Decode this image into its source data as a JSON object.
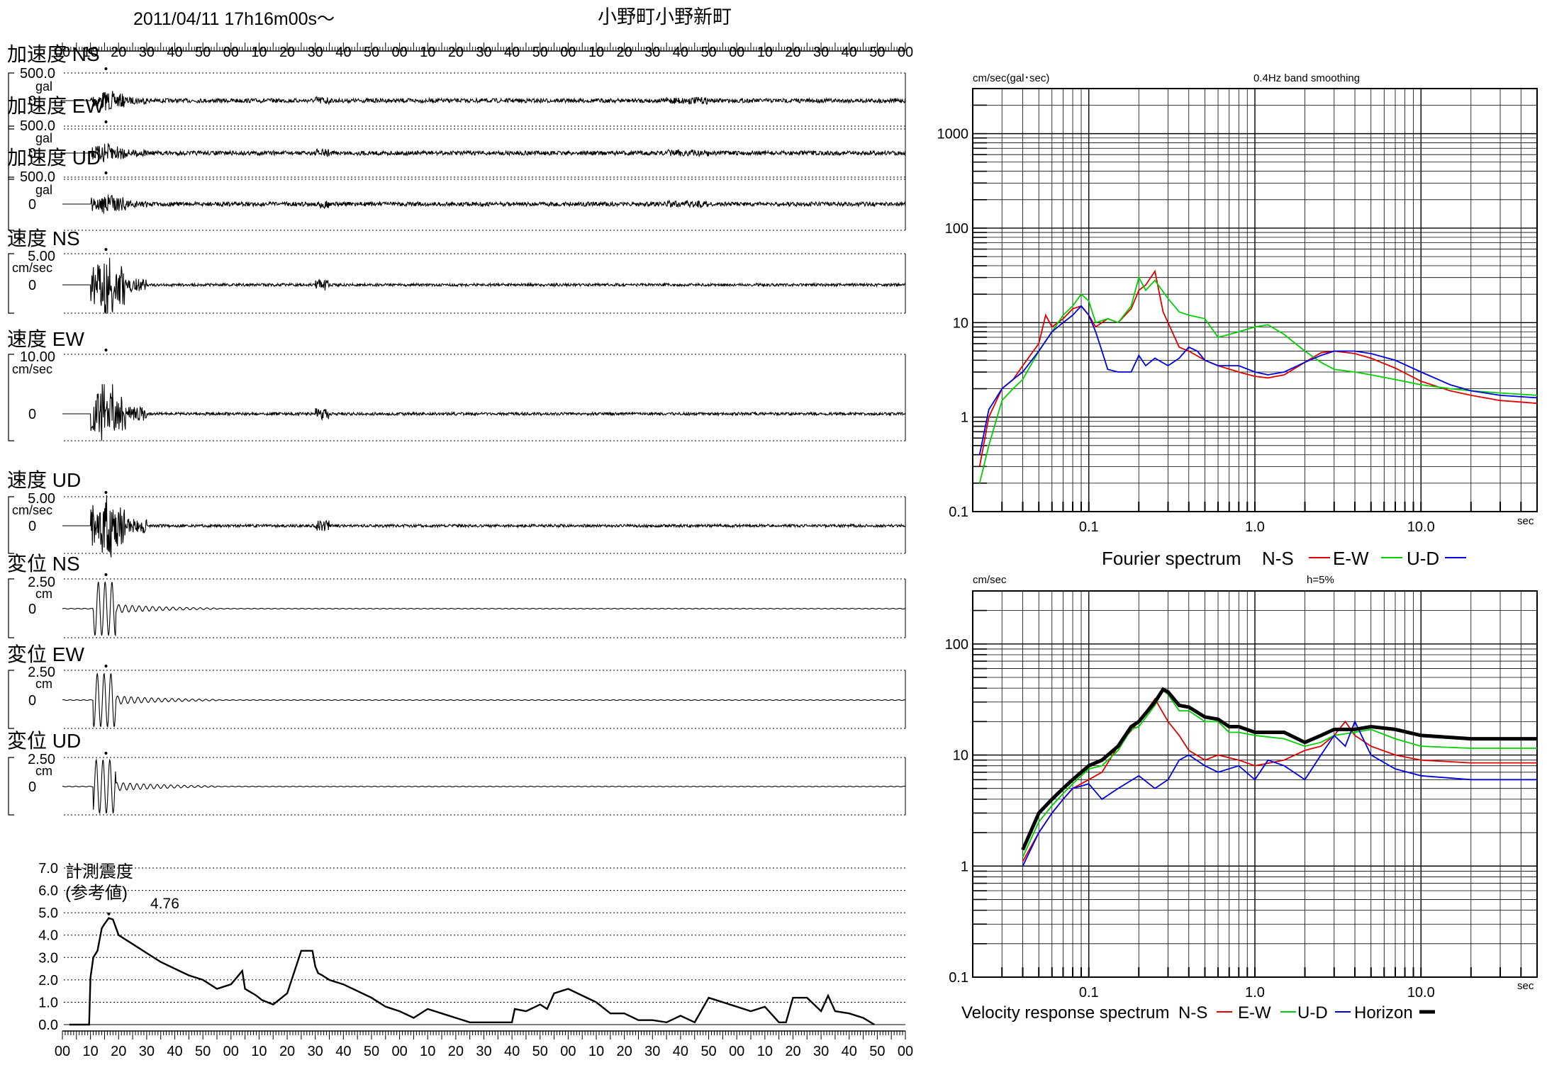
{
  "header": {
    "datetime": "2011/04/11  17h16m00s〜",
    "station": "小野町小野新町"
  },
  "time_axis_ticks": [
    "00",
    "10",
    "20",
    "30",
    "40",
    "50",
    "00",
    "10",
    "20",
    "30",
    "40",
    "50",
    "00",
    "10",
    "20",
    "30",
    "40",
    "50",
    "00",
    "10",
    "20",
    "30",
    "40",
    "50",
    "00",
    "10",
    "20",
    "30",
    "40",
    "50",
    "00"
  ],
  "waveforms": [
    {
      "label": "加速度 NS",
      "scale": "500.0",
      "unit": "gal",
      "zero": "0"
    },
    {
      "label": "加速度 EW",
      "scale": "500.0",
      "unit": "gal",
      "zero": "0"
    },
    {
      "label": "加速度 UD",
      "scale": "500.0",
      "unit": "gal",
      "zero": "0"
    },
    {
      "label": "速度 NS",
      "scale": "5.00",
      "unit": "cm/sec",
      "zero": "0"
    },
    {
      "label": "速度 EW",
      "scale": "10.00",
      "unit": "cm/sec",
      "zero": "0"
    },
    {
      "label": "速度 UD",
      "scale": "5.00",
      "unit": "cm/sec",
      "zero": "0"
    },
    {
      "label": "変位 NS",
      "scale": "2.50",
      "unit": "cm",
      "zero": "0"
    },
    {
      "label": "変位 EW",
      "scale": "2.50",
      "unit": "cm",
      "zero": "0"
    },
    {
      "label": "変位 UD",
      "scale": "2.50",
      "unit": "cm",
      "zero": "0"
    }
  ],
  "intensity": {
    "title_line1": "計測震度",
    "title_line2": "(参考値)",
    "peak_label": "4.76"
  },
  "fourier_panel": {
    "unit_label": "cm/sec(gal･sec)",
    "note": "0.4Hz band smoothing",
    "legend_title": "Fourier spectrum",
    "legend": [
      "N-S",
      "E-W",
      "U-D"
    ]
  },
  "response_panel": {
    "unit_label": "cm/sec",
    "note": "h=5%",
    "legend_title": "Velocity response spectrum",
    "legend": [
      "N-S",
      "E-W",
      "U-D",
      "Horizon"
    ]
  },
  "colors": {
    "ns": "#e00000",
    "ew": "#00d000",
    "ud": "#0000e0",
    "horizon": "#000000"
  },
  "chart_data": [
    {
      "type": "line",
      "name": "intensity",
      "x_ticks": [
        "00",
        "10",
        "20",
        "30",
        "40",
        "50",
        "00",
        "10",
        "20",
        "30",
        "40",
        "50",
        "00",
        "10",
        "20",
        "30",
        "40",
        "50",
        "00",
        "10",
        "20",
        "30",
        "40",
        "50",
        "00",
        "10",
        "20",
        "30",
        "40",
        "50",
        "00"
      ],
      "y_ticks": [
        "0.0",
        "1.0",
        "2.0",
        "3.0",
        "4.0",
        "5.0",
        "6.0",
        "7.0"
      ],
      "ylim": [
        0,
        7
      ],
      "x": [
        5,
        19,
        20,
        22,
        25,
        28,
        30,
        33,
        36,
        40,
        50,
        60,
        70,
        80,
        90,
        100,
        110,
        120,
        128,
        130,
        138,
        142,
        150,
        160,
        170,
        178,
        180,
        182,
        185,
        190,
        200,
        210,
        220,
        230,
        240,
        250,
        260,
        270,
        280,
        290,
        300,
        310,
        320,
        322,
        330,
        340,
        345,
        350,
        360,
        370,
        380,
        390,
        400,
        410,
        420,
        430,
        440,
        450,
        460,
        470,
        480,
        490,
        500,
        510,
        515,
        520,
        530,
        540,
        545,
        550,
        560,
        570,
        578
      ],
      "y": [
        0,
        0,
        2.1,
        3.0,
        3.3,
        4.3,
        4.5,
        4.76,
        4.7,
        4.0,
        3.6,
        3.2,
        2.8,
        2.5,
        2.2,
        2.0,
        1.6,
        1.8,
        2.4,
        1.6,
        1.3,
        1.1,
        0.9,
        1.4,
        3.3,
        3.3,
        2.6,
        2.3,
        2.2,
        2.0,
        1.8,
        1.5,
        1.2,
        0.8,
        0.6,
        0.3,
        0.7,
        0.5,
        0.3,
        0.1,
        0.1,
        0.1,
        0.1,
        0.7,
        0.6,
        0.9,
        0.7,
        1.4,
        1.6,
        1.3,
        1.0,
        0.5,
        0.5,
        0.2,
        0.2,
        0.1,
        0.4,
        0.1,
        1.2,
        1.0,
        0.8,
        0.6,
        0.8,
        0.1,
        0.1,
        1.2,
        1.2,
        0.6,
        1.3,
        0.6,
        0.5,
        0.3,
        0.0
      ]
    },
    {
      "type": "line",
      "name": "fourier",
      "xscale": "log",
      "yscale": "log",
      "xlim": [
        0.02,
        50
      ],
      "ylim": [
        0.1,
        3000
      ],
      "x_ticks": [
        "0.1",
        "1.0",
        "10.0"
      ],
      "x_unit": "sec",
      "y_ticks": [
        "0.1",
        "1",
        "10",
        "100",
        "1000"
      ],
      "series": [
        {
          "name": "N-S",
          "color": "#e00000",
          "x": [
            0.022,
            0.025,
            0.03,
            0.035,
            0.04,
            0.05,
            0.055,
            0.06,
            0.07,
            0.08,
            0.09,
            0.1,
            0.11,
            0.13,
            0.15,
            0.18,
            0.2,
            0.22,
            0.25,
            0.28,
            0.3,
            0.35,
            0.4,
            0.5,
            0.6,
            0.8,
            1.0,
            1.2,
            1.5,
            2.0,
            2.5,
            3.0,
            4.0,
            5.0,
            7.0,
            10,
            15,
            20,
            30,
            50
          ],
          "y": [
            0.3,
            1.0,
            2.0,
            2.5,
            3.5,
            6,
            12,
            9,
            11,
            14,
            15,
            12,
            9,
            11,
            10,
            14,
            22,
            25,
            35,
            13,
            10,
            5.5,
            5.0,
            4.0,
            3.5,
            3.0,
            2.7,
            2.6,
            2.8,
            3.8,
            4.8,
            5.0,
            4.7,
            4.2,
            3.3,
            2.4,
            1.9,
            1.7,
            1.5,
            1.4
          ]
        },
        {
          "name": "E-W",
          "color": "#00d000",
          "x": [
            0.022,
            0.025,
            0.03,
            0.035,
            0.04,
            0.05,
            0.06,
            0.07,
            0.08,
            0.09,
            0.1,
            0.11,
            0.13,
            0.15,
            0.18,
            0.2,
            0.22,
            0.25,
            0.3,
            0.35,
            0.4,
            0.5,
            0.6,
            0.7,
            0.8,
            1.0,
            1.2,
            1.5,
            2.0,
            2.5,
            3.0,
            4.0,
            5.0,
            7.0,
            10,
            15,
            20,
            30,
            50
          ],
          "y": [
            0.2,
            0.5,
            1.5,
            2.0,
            2.5,
            5,
            8,
            12,
            15,
            20,
            17,
            10,
            11,
            10,
            15,
            30,
            22,
            28,
            18,
            13,
            12,
            11,
            7,
            7.5,
            8,
            9,
            9.5,
            7.5,
            5,
            3.8,
            3.2,
            3.0,
            2.8,
            2.5,
            2.2,
            2.0,
            1.9,
            1.8,
            1.7
          ]
        },
        {
          "name": "U-D",
          "color": "#0000e0",
          "x": [
            0.022,
            0.025,
            0.03,
            0.035,
            0.04,
            0.05,
            0.06,
            0.07,
            0.08,
            0.09,
            0.1,
            0.11,
            0.12,
            0.13,
            0.15,
            0.18,
            0.2,
            0.22,
            0.25,
            0.3,
            0.35,
            0.4,
            0.45,
            0.5,
            0.6,
            0.8,
            1.0,
            1.2,
            1.5,
            2.0,
            2.5,
            3.0,
            4.0,
            5.0,
            7.0,
            10,
            15,
            20,
            30,
            50
          ],
          "y": [
            0.4,
            1.2,
            2.0,
            2.5,
            3.0,
            5,
            8,
            10,
            12,
            15,
            12,
            8,
            5,
            3.2,
            3.0,
            3.0,
            4.5,
            3.5,
            4.2,
            3.5,
            4.2,
            5.5,
            5.0,
            4.0,
            3.5,
            3.5,
            3.0,
            2.8,
            3.0,
            3.8,
            4.5,
            5.0,
            5.0,
            4.7,
            4.0,
            3.0,
            2.2,
            1.9,
            1.7,
            1.6
          ]
        }
      ]
    },
    {
      "type": "line",
      "name": "velocity response",
      "xscale": "log",
      "yscale": "log",
      "xlim": [
        0.02,
        50
      ],
      "ylim": [
        0.1,
        300
      ],
      "x_ticks": [
        "0.1",
        "1.0",
        "10.0"
      ],
      "x_unit": "sec",
      "y_ticks": [
        "0.1",
        "1",
        "10",
        "100"
      ],
      "series": [
        {
          "name": "N-S",
          "color": "#e00000",
          "x": [
            0.04,
            0.05,
            0.06,
            0.07,
            0.08,
            0.1,
            0.12,
            0.15,
            0.2,
            0.25,
            0.3,
            0.35,
            0.4,
            0.5,
            0.6,
            0.8,
            1.0,
            1.5,
            2.0,
            2.5,
            3.0,
            3.5,
            4.0,
            5.0,
            7.0,
            10,
            20,
            50
          ],
          "y": [
            1.1,
            2.0,
            3.0,
            4.0,
            5.0,
            6.0,
            7.0,
            12,
            20,
            32,
            20,
            15,
            11,
            9,
            10,
            9,
            8,
            9,
            11,
            12,
            15,
            20,
            15,
            12,
            10,
            9,
            8.5,
            8.5
          ]
        },
        {
          "name": "E-W",
          "color": "#00d000",
          "x": [
            0.04,
            0.05,
            0.06,
            0.07,
            0.08,
            0.1,
            0.12,
            0.15,
            0.18,
            0.2,
            0.25,
            0.28,
            0.3,
            0.35,
            0.4,
            0.5,
            0.6,
            0.7,
            0.8,
            1.0,
            1.5,
            2.0,
            2.5,
            3.0,
            4.0,
            5.0,
            7.0,
            10,
            20,
            50
          ],
          "y": [
            1.2,
            2.5,
            3.5,
            4.5,
            5.5,
            7.5,
            8.0,
            11,
            17,
            18,
            28,
            38,
            35,
            25,
            25,
            20,
            20,
            16,
            16,
            15,
            14,
            12,
            13,
            15,
            16,
            17,
            14,
            12,
            11.5,
            11.5
          ]
        },
        {
          "name": "U-D",
          "color": "#0000e0",
          "x": [
            0.04,
            0.05,
            0.06,
            0.07,
            0.08,
            0.1,
            0.12,
            0.15,
            0.2,
            0.25,
            0.3,
            0.35,
            0.4,
            0.5,
            0.6,
            0.8,
            1.0,
            1.2,
            1.5,
            2.0,
            2.5,
            3.0,
            3.5,
            4.0,
            5.0,
            7.0,
            10,
            20,
            50
          ],
          "y": [
            1.0,
            2.0,
            3.0,
            4.0,
            5.0,
            5.5,
            4.0,
            5.0,
            6.5,
            5.0,
            6.0,
            9.0,
            10,
            8.0,
            7.0,
            8.0,
            6.0,
            9.0,
            8.0,
            6.0,
            10,
            15,
            12,
            20,
            10,
            7.5,
            6.5,
            6.0,
            6.0
          ]
        },
        {
          "name": "Horizon",
          "color": "#000000",
          "x": [
            0.04,
            0.05,
            0.06,
            0.07,
            0.08,
            0.1,
            0.12,
            0.15,
            0.18,
            0.2,
            0.25,
            0.28,
            0.3,
            0.35,
            0.4,
            0.5,
            0.6,
            0.7,
            0.8,
            1.0,
            1.5,
            2.0,
            2.5,
            3.0,
            4.0,
            5.0,
            7.0,
            10,
            20,
            50
          ],
          "y": [
            1.4,
            3.0,
            4.0,
            5.0,
            6.0,
            8.0,
            9.0,
            12,
            18,
            20,
            30,
            39,
            37,
            28,
            27,
            22,
            21,
            18,
            18,
            16,
            16,
            13,
            15,
            17,
            17,
            18,
            17,
            15,
            14,
            14
          ]
        }
      ]
    }
  ]
}
